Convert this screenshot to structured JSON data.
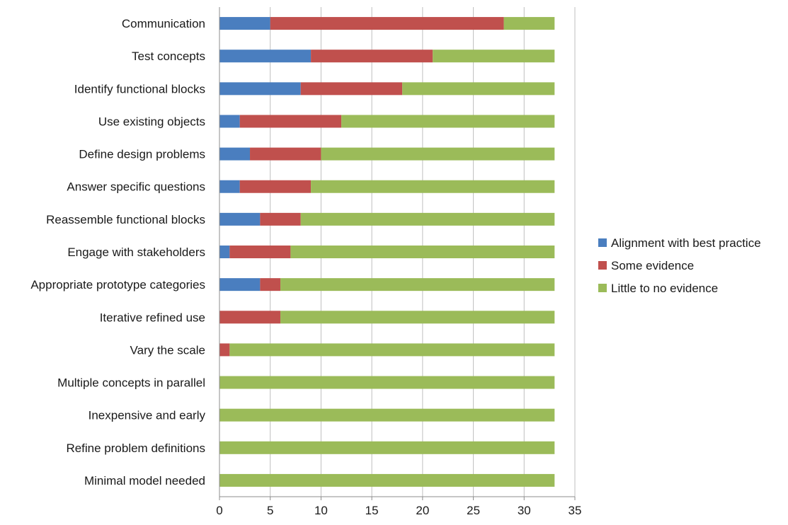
{
  "chart_data": {
    "type": "bar",
    "orientation": "horizontal",
    "stacked": true,
    "categories": [
      "Communication",
      "Test concepts",
      "Identify functional blocks",
      "Use existing objects",
      "Define design problems",
      "Answer specific questions",
      "Reassemble functional blocks",
      "Engage with stakeholders",
      "Appropriate prototype categories",
      "Iterative refined use",
      "Vary the scale",
      "Multiple concepts in parallel",
      "Inexpensive and early",
      "Refine problem definitions",
      "Minimal model needed"
    ],
    "series": [
      {
        "name": "Alignment with best practice",
        "color": "#4a7ebf",
        "values": [
          5,
          9,
          8,
          2,
          3,
          2,
          4,
          1,
          4,
          0,
          0,
          0,
          0,
          0,
          0
        ]
      },
      {
        "name": "Some evidence",
        "color": "#c0504d",
        "values": [
          23,
          12,
          10,
          10,
          7,
          7,
          4,
          6,
          2,
          6,
          1,
          0,
          0,
          0,
          0
        ]
      },
      {
        "name": "Little to no evidence",
        "color": "#9bbb59",
        "values": [
          5,
          12,
          15,
          21,
          23,
          24,
          25,
          26,
          27,
          27,
          32,
          33,
          33,
          33,
          33
        ]
      }
    ],
    "xlim": [
      0,
      35
    ],
    "xticks": [
      "0",
      "5",
      "10",
      "15",
      "20",
      "25",
      "30",
      "35"
    ],
    "xlabel": "",
    "ylabel": "",
    "grid": true,
    "legend_position": "right"
  }
}
